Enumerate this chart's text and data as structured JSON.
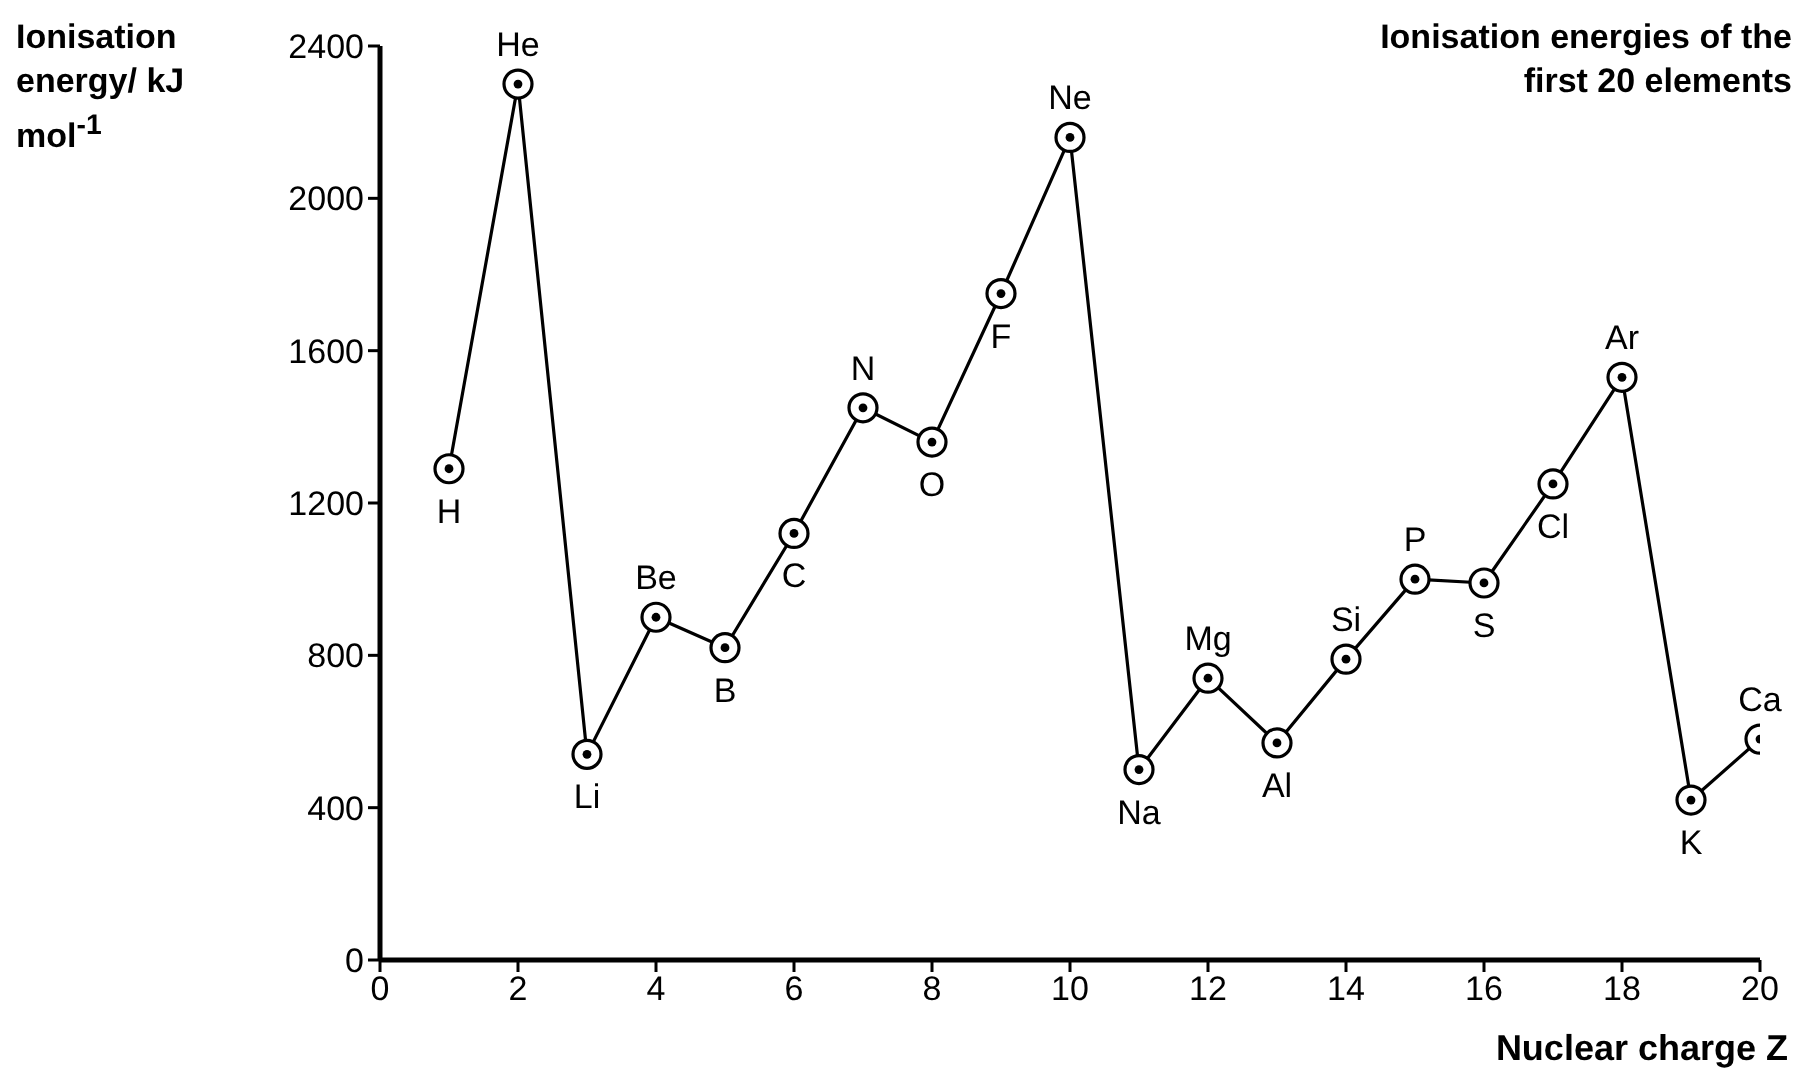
{
  "chart_data": {
    "type": "line",
    "title": "Ionisation energies of the first 20 elements",
    "xlabel": "Nuclear charge Z",
    "ylabel": "Ionisation energy/ kJ mol$^{-1}$",
    "x": [
      1,
      2,
      3,
      4,
      5,
      6,
      7,
      8,
      9,
      10,
      11,
      12,
      13,
      14,
      15,
      16,
      17,
      18,
      19,
      20
    ],
    "series": [
      {
        "color": "#000000",
        "values": [
          1290,
          2300,
          540,
          900,
          820,
          1120,
          1450,
          1360,
          1750,
          2160,
          500,
          740,
          570,
          790,
          1000,
          990,
          1250,
          1530,
          420,
          580
        ]
      }
    ],
    "xlim": [
      0,
      20
    ],
    "xticks": [
      0,
      2,
      4,
      6,
      8,
      10,
      12,
      14,
      16,
      18,
      20
    ],
    "ylim": [
      0,
      2400
    ],
    "yticks": [
      0,
      400,
      800,
      1200,
      1600,
      2000,
      2400
    ],
    "marker": "circle",
    "line_style": "solid",
    "grid": false,
    "legend": false,
    "annotations": [
      {
        "text": "H",
        "x": 1,
        "y": 1290
      },
      {
        "text": "He",
        "x": 2,
        "y": 2300
      },
      {
        "text": "Li",
        "x": 3,
        "y": 540
      },
      {
        "text": "Be",
        "x": 4,
        "y": 900
      },
      {
        "text": "B",
        "x": 5,
        "y": 820
      },
      {
        "text": "C",
        "x": 6,
        "y": 1120
      },
      {
        "text": "N",
        "x": 7,
        "y": 1450
      },
      {
        "text": "O",
        "x": 8,
        "y": 1360
      },
      {
        "text": "F",
        "x": 9,
        "y": 1750
      },
      {
        "text": "Ne",
        "x": 10,
        "y": 2160
      },
      {
        "text": "Na",
        "x": 11,
        "y": 500
      },
      {
        "text": "Mg",
        "x": 12,
        "y": 740
      },
      {
        "text": "Al",
        "x": 13,
        "y": 570
      },
      {
        "text": "Si",
        "x": 14,
        "y": 790
      },
      {
        "text": "P",
        "x": 15,
        "y": 1000
      },
      {
        "text": "S",
        "x": 16,
        "y": 990
      },
      {
        "text": "Cl",
        "x": 17,
        "y": 1250
      },
      {
        "text": "Ar",
        "x": 18,
        "y": 1530
      },
      {
        "text": "K",
        "x": 19,
        "y": 420
      },
      {
        "text": "Ca",
        "x": 20,
        "y": 580
      }
    ]
  }
}
